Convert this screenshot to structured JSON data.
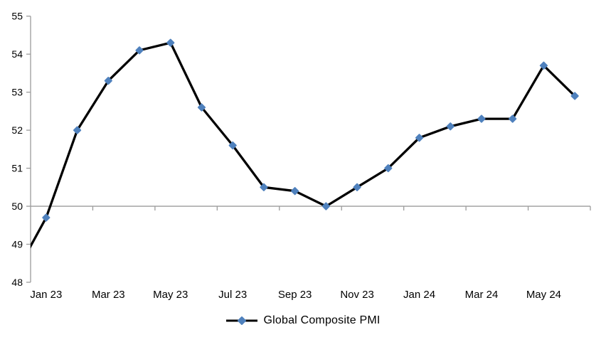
{
  "chart_data": {
    "type": "line",
    "title": "",
    "x": [
      "Dec 22",
      "Jan 23",
      "Feb 23",
      "Mar 23",
      "Apr 23",
      "May 23",
      "Jun 23",
      "Jul 23",
      "Aug 23",
      "Sep 23",
      "Oct 23",
      "Nov 23",
      "Dec 23",
      "Jan 24",
      "Feb 24",
      "Mar 24",
      "Apr 24",
      "May 24",
      "Jun 24"
    ],
    "series": [
      {
        "name": "Global Composite PMI",
        "values": [
          48.2,
          49.7,
          52.0,
          53.3,
          54.1,
          54.3,
          52.6,
          51.6,
          50.5,
          50.4,
          50.0,
          50.5,
          51.0,
          51.8,
          52.1,
          52.3,
          52.3,
          53.7,
          52.9
        ]
      }
    ],
    "x_tick_labels": [
      "Jan 23",
      "Mar 23",
      "May 23",
      "Jul 23",
      "Sep 23",
      "Nov 23",
      "Jan 24",
      "Mar 24",
      "May 24"
    ],
    "y_ticks": [
      48,
      49,
      50,
      51,
      52,
      53,
      54,
      55
    ],
    "ylim": [
      48,
      55
    ],
    "axis_cross_value": 50,
    "legend": {
      "label": "Global Composite PMI",
      "position": "bottom-center"
    },
    "layout": {
      "grid": false,
      "x_label_interval_months": 2,
      "first_point_clipped_at_left_axis": true
    },
    "colors": {
      "line": "#000000",
      "marker": "#4F81BD",
      "axis": "#9C9C9C",
      "text": "#000000",
      "background": "#FFFFFF"
    }
  }
}
